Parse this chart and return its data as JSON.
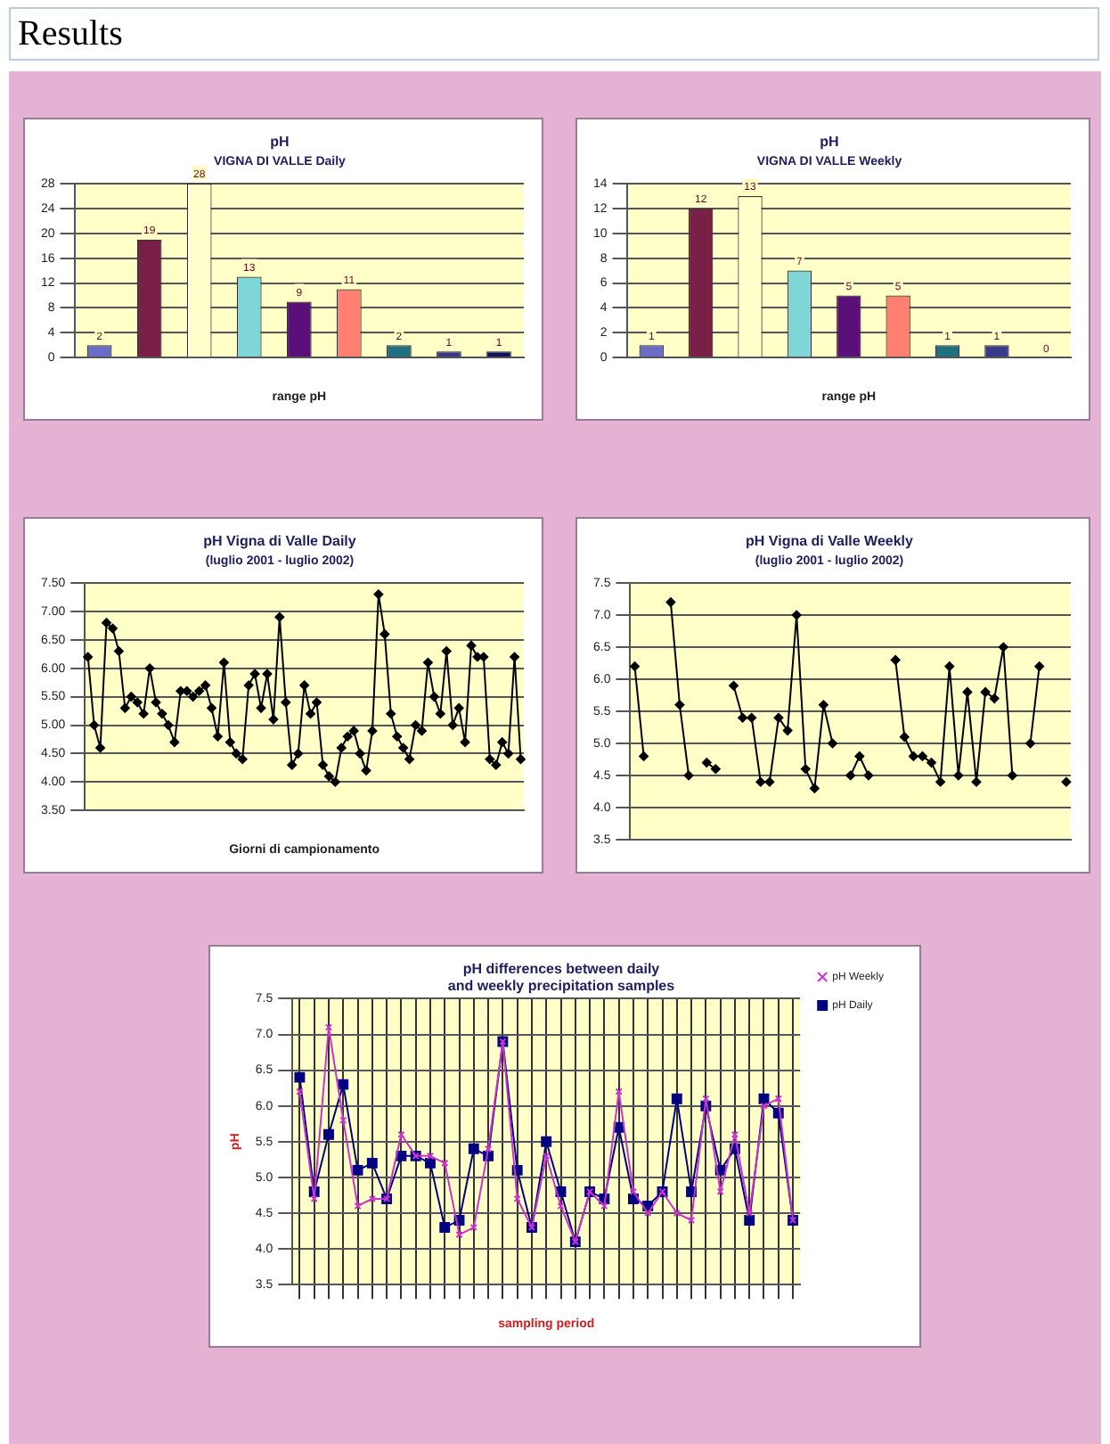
{
  "chart_data": [
    {
      "type": "bar",
      "title": "pH",
      "subtitle": "VIGNA DI VALLE Daily",
      "xlabel": "range pH",
      "annotations": [
        "Results"
      ],
      "categories": [
        null,
        null,
        null,
        null,
        null,
        null,
        null,
        null,
        null
      ],
      "values": [
        2,
        19,
        28,
        13,
        9,
        11,
        2,
        1,
        1
      ],
      "colors": [
        "#6b6bc8",
        "#7a1f48",
        "#ffffcc",
        "#7fd6d6",
        "#5a1078",
        "#ff8070",
        "#1f6f7f",
        "#3a3a8c",
        "#101060"
      ],
      "ylim": [
        0,
        28
      ],
      "yticks": [
        0,
        4,
        8,
        12,
        16,
        20,
        24,
        28
      ],
      "grid": "y",
      "data_labels": true,
      "legend": false
    },
    {
      "type": "bar",
      "title": "pH",
      "subtitle": "VIGNA DI VALLE Weekly",
      "xlabel": "range pH",
      "categories": [
        null,
        null,
        null,
        null,
        null,
        null,
        null,
        null,
        null
      ],
      "values": [
        1,
        12,
        13,
        7,
        5,
        5,
        1,
        1,
        0
      ],
      "colors": [
        "#6b6bc8",
        "#7a1f48",
        "#ffffcc",
        "#7fd6d6",
        "#5a1078",
        "#ff8070",
        "#1f6f7f",
        "#3a3a8c",
        "#101060"
      ],
      "ylim": [
        0,
        14
      ],
      "yticks": [
        0,
        2,
        4,
        6,
        8,
        10,
        12,
        14
      ],
      "grid": "y",
      "data_labels": true,
      "legend": false
    },
    {
      "type": "line",
      "title": "pH Vigna di Valle Daily",
      "subtitle": "(luglio 2001 - luglio 2002)",
      "xlabel": "Giorni di campionamento",
      "categories": [
        null,
        null,
        null,
        null,
        null,
        null,
        null,
        null,
        null,
        null,
        null,
        null,
        null,
        null,
        null,
        null,
        null,
        null,
        null,
        null,
        null,
        null,
        null,
        null,
        null,
        null,
        null,
        null,
        null,
        null,
        null,
        null,
        null,
        null,
        null,
        null,
        null,
        null,
        null,
        null,
        null,
        null,
        null,
        null,
        null,
        null,
        null,
        null,
        null,
        null,
        null,
        null,
        null,
        null,
        null,
        null,
        null,
        null,
        null,
        null,
        null,
        null,
        null,
        null,
        null,
        null,
        null,
        null,
        null,
        null,
        null
      ],
      "series": [
        {
          "color": "#000000",
          "values": [
            6.2,
            5.0,
            4.6,
            6.8,
            6.7,
            6.3,
            5.3,
            5.5,
            5.4,
            5.2,
            6.0,
            5.4,
            5.2,
            5.0,
            4.7,
            5.6,
            5.6,
            5.5,
            5.6,
            5.7,
            5.3,
            4.8,
            6.1,
            4.7,
            4.5,
            4.4,
            5.7,
            5.9,
            5.3,
            5.9,
            5.1,
            6.9,
            5.4,
            4.3,
            4.5,
            5.7,
            5.2,
            5.4,
            4.3,
            4.1,
            4.0,
            4.6,
            4.8,
            4.9,
            4.5,
            4.2,
            4.9,
            7.3,
            6.6,
            5.2,
            4.8,
            4.6,
            4.4,
            5.0,
            4.9,
            6.1,
            5.5,
            5.2,
            6.3,
            5.0,
            5.3,
            4.7,
            6.4,
            6.2,
            6.2,
            4.4,
            4.3,
            4.7,
            4.5,
            6.2,
            4.4
          ]
        }
      ],
      "ylim": [
        3.5,
        7.5
      ],
      "yticks": [
        {
          "value": 3.5,
          "label": "3.50"
        },
        {
          "value": 4,
          "label": "4.00"
        },
        {
          "value": 4.5,
          "label": "4.50"
        },
        {
          "value": 5,
          "label": "5.00"
        },
        {
          "value": 5.5,
          "label": "5.50"
        },
        {
          "value": 6,
          "label": "6.00"
        },
        {
          "value": 6.5,
          "label": "6.50"
        },
        {
          "value": 7,
          "label": "7.00"
        },
        {
          "value": 7.5,
          "label": "7.50"
        }
      ],
      "grid": "y",
      "marker": "diamond",
      "legend": false
    },
    {
      "type": "line",
      "title": "pH Vigna di Valle Weekly",
      "subtitle": "(luglio 2001 - luglio 2002)",
      "categories": [
        null,
        null,
        null,
        null,
        null,
        null,
        null,
        null,
        null,
        null,
        null,
        null,
        null,
        null,
        null,
        null,
        null,
        null,
        null,
        null,
        null,
        null,
        null,
        null,
        null,
        null,
        null,
        null,
        null,
        null,
        null,
        null,
        null,
        null,
        null,
        null,
        null,
        null,
        null,
        null,
        null,
        null,
        null,
        null,
        null,
        null,
        null,
        null,
        null
      ],
      "series": [
        {
          "color": "#000000",
          "values": [
            6.2,
            4.8,
            null,
            null,
            7.2,
            5.6,
            4.5,
            null,
            4.7,
            4.6,
            null,
            5.9,
            5.4,
            5.4,
            4.4,
            4.4,
            5.4,
            5.2,
            7.0,
            4.6,
            4.3,
            5.6,
            5.0,
            null,
            4.5,
            4.8,
            4.5,
            null,
            null,
            6.3,
            5.1,
            4.8,
            4.8,
            4.7,
            4.4,
            6.2,
            4.5,
            5.8,
            4.4,
            5.8,
            5.7,
            6.5,
            4.5,
            null,
            5.0,
            6.2,
            null,
            null,
            4.4
          ]
        }
      ],
      "ylim": [
        3.5,
        7.5
      ],
      "yticks": [
        {
          "value": 3.5,
          "label": "3.5"
        },
        {
          "value": 4,
          "label": "4.0"
        },
        {
          "value": 4.5,
          "label": "4.5"
        },
        {
          "value": 5,
          "label": "5.0"
        },
        {
          "value": 5.5,
          "label": "5.5"
        },
        {
          "value": 6,
          "label": "6.0"
        },
        {
          "value": 6.5,
          "label": "6.5"
        },
        {
          "value": 7,
          "label": "7.0"
        },
        {
          "value": 7.5,
          "label": "7.5"
        }
      ],
      "grid": "y",
      "marker": "diamond",
      "legend": false
    },
    {
      "type": "line",
      "title": "pH differences between daily and weekly precipitation samples",
      "xlabel": "sampling period",
      "ylabel": "pH",
      "categories": [
        null,
        null,
        null,
        null,
        null,
        null,
        null,
        null,
        null,
        null,
        null,
        null,
        null,
        null,
        null,
        null,
        null,
        null,
        null,
        null,
        null,
        null,
        null,
        null,
        null,
        null,
        null,
        null,
        null,
        null,
        null,
        null,
        null,
        null,
        null
      ],
      "series": [
        {
          "name": "pH Daily",
          "color": "#000080",
          "marker": "square",
          "values": [
            6.4,
            4.8,
            5.6,
            6.3,
            5.1,
            5.2,
            4.7,
            5.3,
            5.3,
            5.2,
            4.3,
            4.4,
            5.4,
            5.3,
            6.9,
            5.1,
            4.3,
            5.5,
            4.8,
            4.1,
            4.8,
            4.7,
            5.7,
            4.7,
            4.6,
            4.8,
            6.1,
            4.8,
            6.0,
            5.1,
            5.4,
            4.4,
            6.1,
            5.9,
            4.4
          ]
        },
        {
          "name": "pH Weekly",
          "color": "#cc33cc",
          "marker": "cross",
          "values": [
            6.2,
            4.7,
            7.1,
            5.8,
            4.6,
            4.7,
            4.7,
            5.6,
            5.3,
            5.3,
            5.2,
            4.2,
            4.3,
            5.4,
            6.9,
            4.7,
            4.3,
            5.3,
            4.6,
            4.1,
            4.8,
            4.6,
            6.2,
            4.8,
            4.5,
            4.8,
            4.5,
            4.4,
            6.1,
            4.8,
            5.6,
            4.5,
            6.0,
            6.1,
            4.4
          ]
        }
      ],
      "ylim": [
        3.5,
        7.5
      ],
      "yticks": [
        {
          "value": 3.5,
          "label": "3.5"
        },
        {
          "value": 4,
          "label": "4.0"
        },
        {
          "value": 4.5,
          "label": "4.5"
        },
        {
          "value": 5,
          "label": "5.0"
        },
        {
          "value": 5.5,
          "label": "5.5"
        },
        {
          "value": 6,
          "label": "6.0"
        },
        {
          "value": 6.5,
          "label": "6.5"
        },
        {
          "value": 7,
          "label": "7.0"
        },
        {
          "value": 7.5,
          "label": "7.5"
        }
      ],
      "grid": true,
      "legend": "top right"
    }
  ]
}
